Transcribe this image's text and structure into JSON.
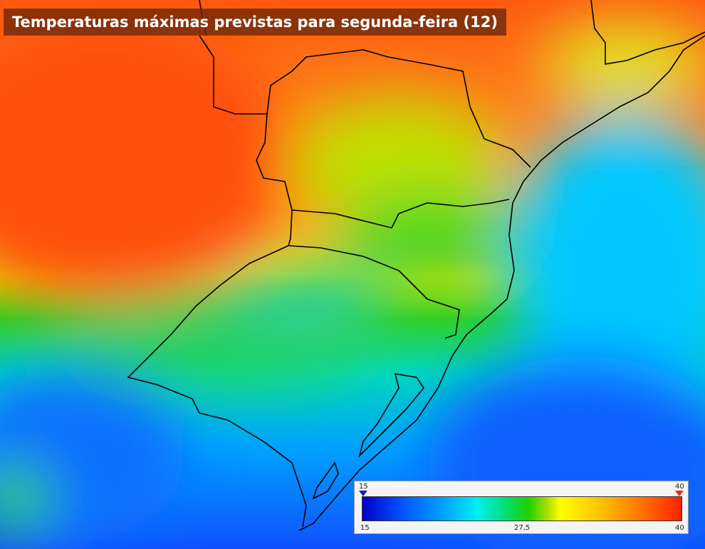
{
  "title": "Temperaturas máximas previstas para segunda-feira (12)",
  "legend": {
    "marker_labels": [
      "15",
      "40"
    ],
    "tick_labels": [
      "15",
      "27,5",
      "40"
    ]
  }
}
